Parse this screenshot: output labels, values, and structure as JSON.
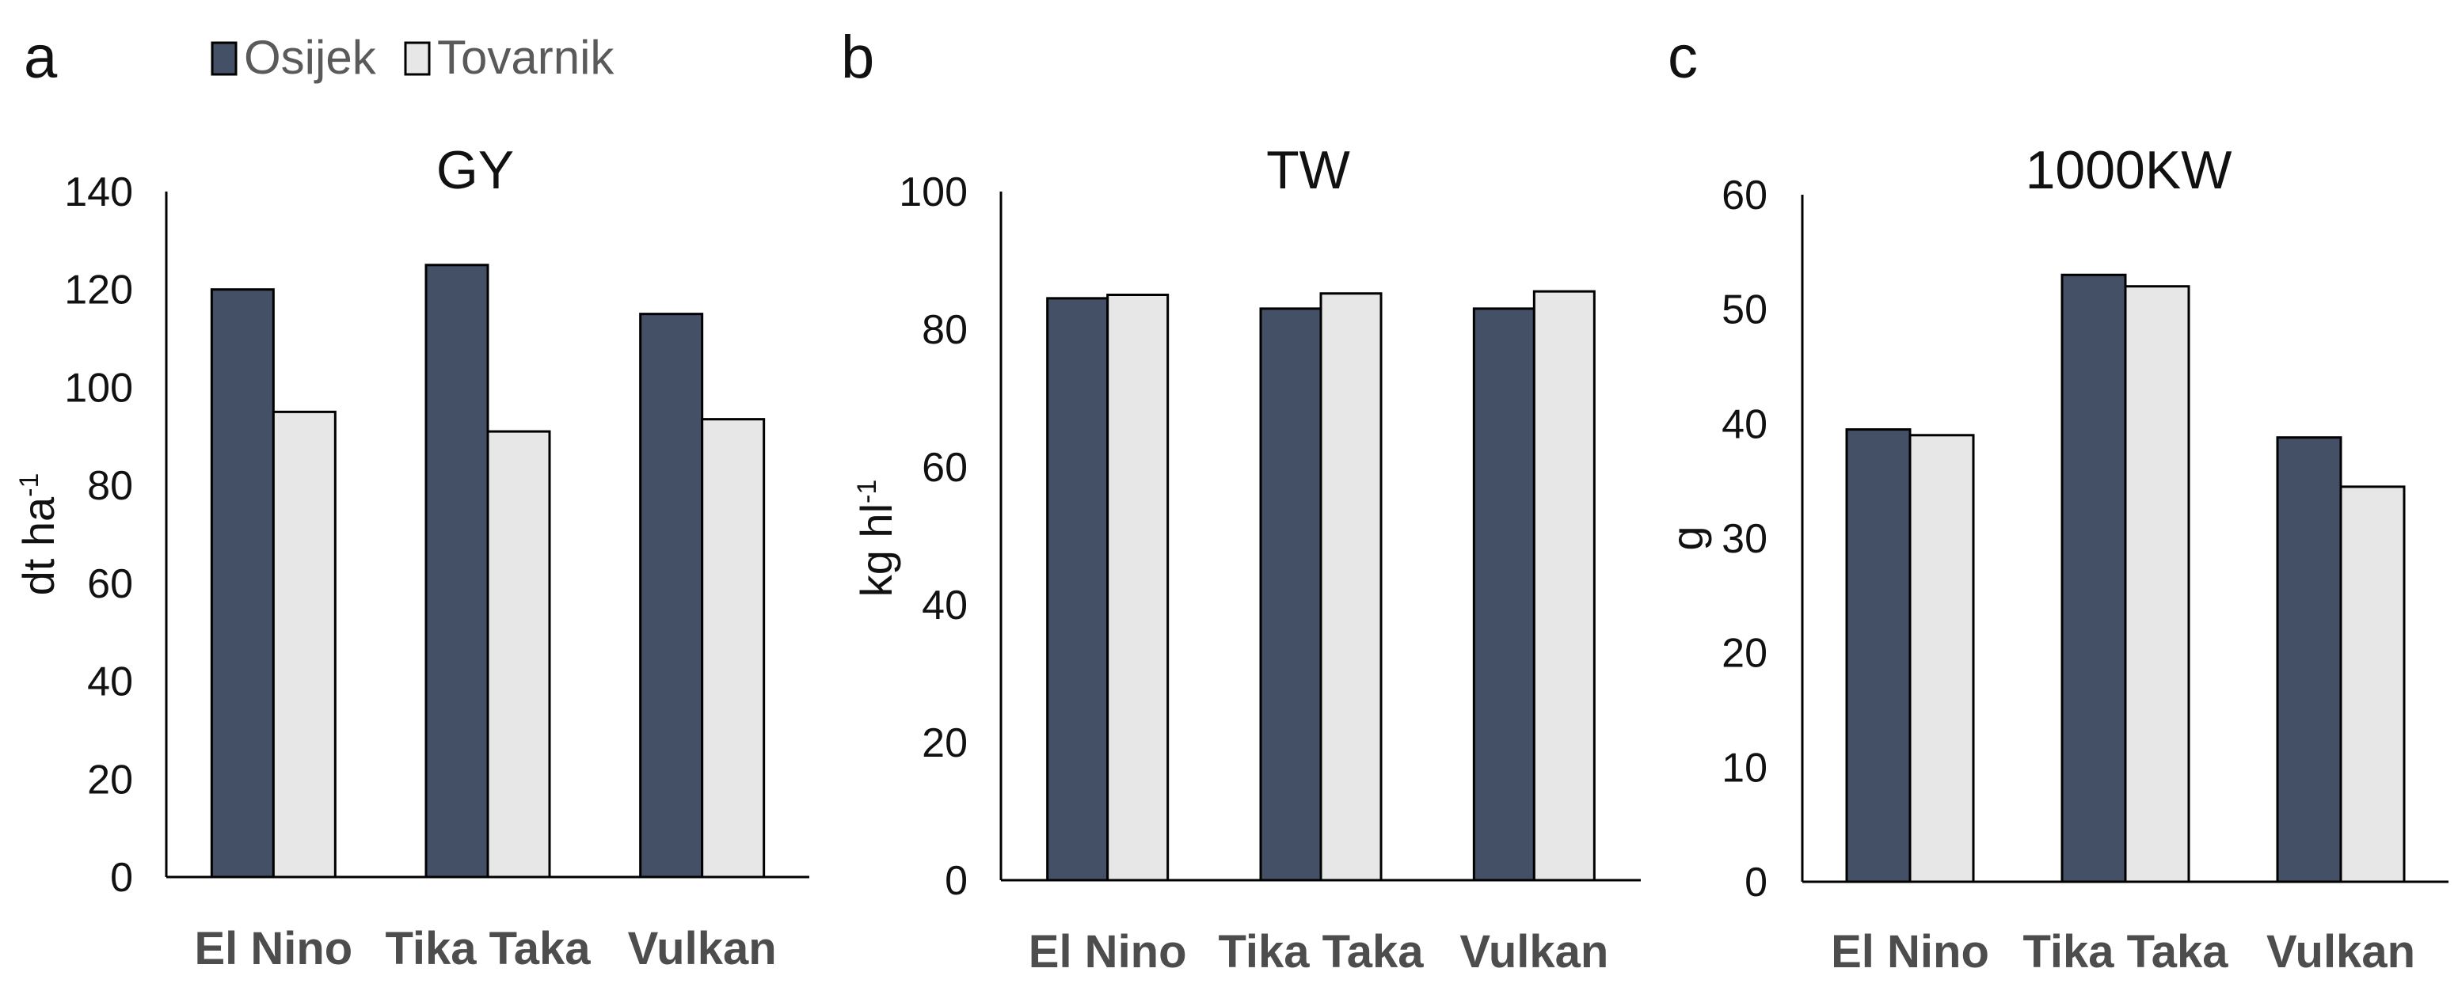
{
  "legend": {
    "items": [
      {
        "name": "Osijek",
        "color": "#435066"
      },
      {
        "name": "Tovarnik",
        "color": "#e7e7e7"
      }
    ]
  },
  "chart_data": [
    {
      "type": "bar",
      "panel": "a",
      "title": "GY",
      "ylabel": "dt ha",
      "ylabel_sup": "-1",
      "categories": [
        "El Nino",
        "Tika Taka",
        "Vulkan"
      ],
      "series": [
        {
          "name": "Osijek",
          "values": [
            120,
            125,
            115
          ]
        },
        {
          "name": "Tovarnik",
          "values": [
            95,
            91,
            93.5
          ]
        }
      ],
      "ylim": [
        0,
        140
      ],
      "yticks": [
        0,
        20,
        40,
        60,
        80,
        100,
        120,
        140
      ]
    },
    {
      "type": "bar",
      "panel": "b",
      "title": "TW",
      "ylabel": "kg hl",
      "ylabel_sup": "-1",
      "categories": [
        "El Nino",
        "Tika Taka",
        "Vulkan"
      ],
      "series": [
        {
          "name": "Osijek",
          "values": [
            84.5,
            83,
            83
          ]
        },
        {
          "name": "Tovarnik",
          "values": [
            85,
            85.2,
            85.5
          ]
        }
      ],
      "ylim": [
        0,
        100
      ],
      "yticks": [
        0,
        20,
        40,
        60,
        80,
        100
      ]
    },
    {
      "type": "bar",
      "panel": "c",
      "title": "1000KW",
      "ylabel": "g",
      "ylabel_sup": "",
      "categories": [
        "El Nino",
        "Tika Taka",
        "Vulkan"
      ],
      "series": [
        {
          "name": "Osijek",
          "values": [
            39.5,
            53,
            38.8
          ]
        },
        {
          "name": "Tovarnik",
          "values": [
            39,
            52,
            34.5
          ]
        }
      ],
      "ylim": [
        0,
        60
      ],
      "yticks": [
        0,
        10,
        20,
        30,
        40,
        50,
        60
      ]
    }
  ]
}
